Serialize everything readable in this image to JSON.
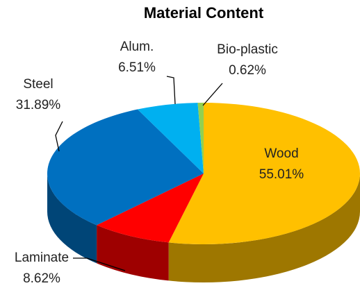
{
  "chart_data": {
    "type": "pie3d",
    "title": "Material Content",
    "categories": [
      "Wood",
      "Laminate",
      "Steel",
      "Alum.",
      "Bio-plastic"
    ],
    "values": [
      55.01,
      8.62,
      31.89,
      6.51,
      0.62
    ],
    "value_labels": [
      "55.01%",
      "8.62%",
      "31.89%",
      "6.51%",
      "0.62%"
    ],
    "colors": [
      "#ffc000",
      "#ff0000",
      "#0070c0",
      "#00b0f0",
      "#92d050"
    ]
  }
}
